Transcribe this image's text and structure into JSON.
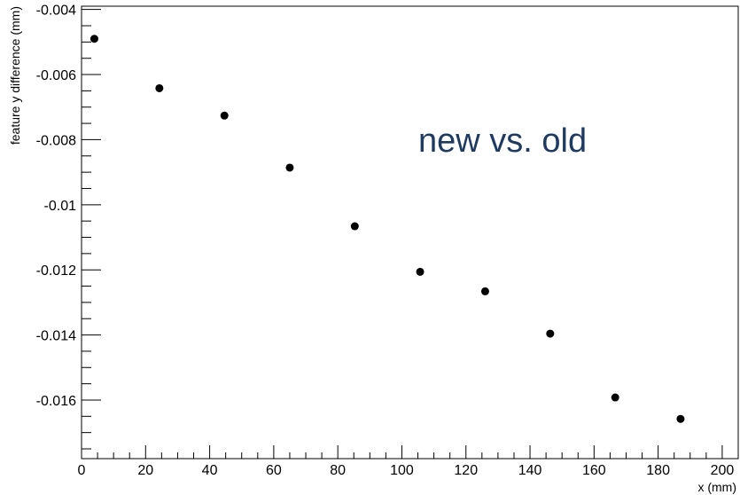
{
  "chart_data": {
    "type": "scatter",
    "title": "",
    "annotation": "new vs. old",
    "xlabel": "x (mm)",
    "ylabel": "feature y difference (mm)",
    "xlim": [
      0,
      205
    ],
    "ylim": [
      -0.0178,
      -0.0039
    ],
    "xticks": [
      0,
      20,
      40,
      60,
      80,
      100,
      120,
      140,
      160,
      180,
      200
    ],
    "xtick_labels": [
      "0",
      "20",
      "40",
      "60",
      "80",
      "100",
      "120",
      "140",
      "160",
      "180",
      "200"
    ],
    "yticks": [
      -0.004,
      -0.006,
      -0.008,
      -0.01,
      -0.012,
      -0.014,
      -0.016
    ],
    "ytick_labels": [
      "-0.004",
      "-0.006",
      "-0.008",
      "-0.01",
      "-0.012",
      "-0.014",
      "-0.016"
    ],
    "grid": false,
    "series": [
      {
        "x": [
          4,
          24.3,
          44.6,
          65,
          85.3,
          105.7,
          126,
          146.3,
          166.6,
          187
        ],
        "y": [
          -0.0049,
          -0.00642,
          -0.00726,
          -0.00886,
          -0.01066,
          -0.01206,
          -0.01266,
          -0.01396,
          -0.01592,
          -0.01658
        ]
      }
    ],
    "colors": {
      "marker": "#000000",
      "annotation": "#1f3a60"
    }
  }
}
